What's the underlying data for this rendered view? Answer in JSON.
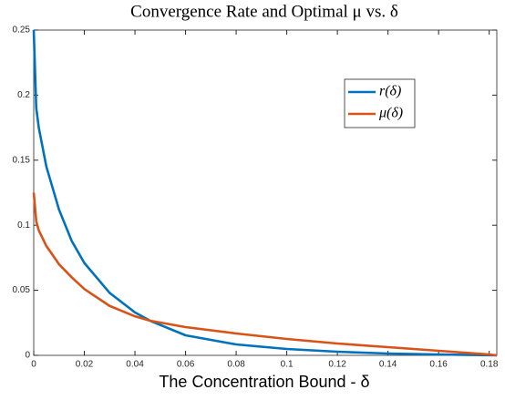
{
  "chart_data": {
    "type": "line",
    "title": "Convergence Rate and Optimal μ vs. δ",
    "xlabel": "The Concentration Bound - δ",
    "x": [
      0,
      0.001,
      0.002,
      0.005,
      0.01,
      0.015,
      0.02,
      0.03,
      0.04,
      0.046,
      0.06,
      0.08,
      0.1,
      0.12,
      0.14,
      0.16,
      0.18,
      0.183
    ],
    "series": [
      {
        "name": "r(δ)",
        "color": "#0072bd",
        "values": [
          0.25,
          0.19,
          0.175,
          0.145,
          0.112,
          0.088,
          0.071,
          0.048,
          0.033,
          0.0266,
          0.0154,
          0.0084,
          0.0049,
          0.0028,
          0.0014,
          0.0007,
          0.0001,
          0
        ]
      },
      {
        "name": "μ(δ)",
        "color": "#d95319",
        "values": [
          0.125,
          0.103,
          0.096,
          0.084,
          0.07,
          0.06,
          0.051,
          0.038,
          0.03,
          0.0266,
          0.0217,
          0.0168,
          0.0126,
          0.0091,
          0.0063,
          0.0035,
          0.0007,
          0
        ]
      }
    ],
    "xlim": [
      0,
      0.183
    ],
    "ylim": [
      0,
      0.25
    ],
    "xticks": [
      0,
      0.02,
      0.04,
      0.06,
      0.08,
      0.1,
      0.12,
      0.14,
      0.16,
      0.18
    ],
    "yticks": [
      0,
      0.05,
      0.1,
      0.15,
      0.2,
      0.25
    ],
    "legend": "upper right"
  }
}
